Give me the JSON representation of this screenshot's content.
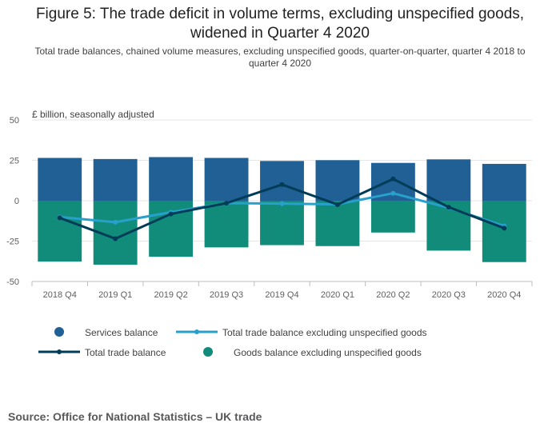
{
  "header": {
    "title": "Figure 5: The trade deficit in volume terms, excluding unspecified goods, widened in Quarter 4 2020",
    "subtitle": "Total trade balances, chained volume measures, excluding unspecified goods, quarter-on-quarter, quarter 4 2018 to quarter 4 2020"
  },
  "footer": {
    "source": "Source: Office for National Statistics – UK trade"
  },
  "colors": {
    "services": "#206095",
    "goods": "#118c7b",
    "total_excl": "#27a0cc",
    "total": "#003c57",
    "grid": "#e6e6e6",
    "axis_text": "#5e5e5e"
  },
  "chart_data": {
    "type": "bar",
    "unit_label": "£ billion, seasonally adjusted",
    "categories": [
      "2018 Q4",
      "2019 Q1",
      "2019 Q2",
      "2019 Q3",
      "2019 Q4",
      "2020 Q1",
      "2020 Q2",
      "2020 Q3",
      "2020 Q4"
    ],
    "ylim": [
      -50,
      50
    ],
    "yticks": [
      50,
      25,
      0,
      -25,
      -50
    ],
    "grid": true,
    "legend_position": "bottom",
    "series": [
      {
        "name": "Services balance",
        "kind": "bar",
        "values": [
          26.5,
          25.8,
          27.0,
          26.5,
          24.6,
          25.1,
          23.4,
          25.6,
          22.8
        ]
      },
      {
        "name": "Goods balance excluding unspecified goods",
        "kind": "bar",
        "values": [
          -37.7,
          -39.6,
          -34.7,
          -28.9,
          -27.5,
          -28.1,
          -19.7,
          -30.9,
          -38.0
        ]
      },
      {
        "name": "Total trade balance excluding unspecified goods",
        "kind": "line",
        "values": [
          -10.1,
          -13.3,
          -7.1,
          -1.5,
          -1.8,
          -2.2,
          4.6,
          -4.4,
          -15.6
        ]
      },
      {
        "name": "Total trade balance",
        "kind": "line",
        "values": [
          -10.6,
          -23.5,
          -8.2,
          -1.5,
          10.0,
          -2.4,
          13.5,
          -4.0,
          -17.0
        ]
      }
    ]
  }
}
